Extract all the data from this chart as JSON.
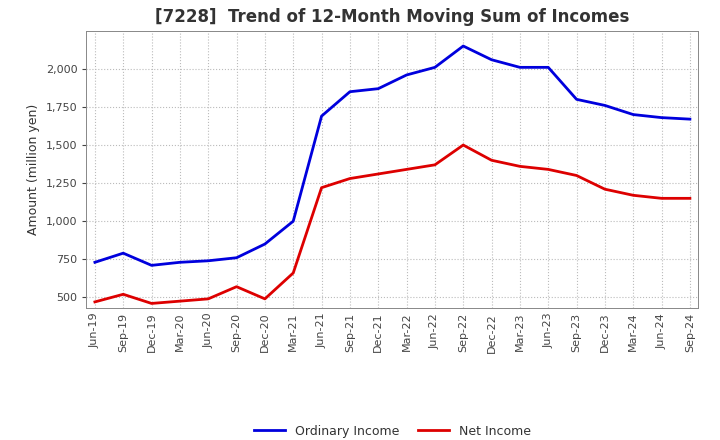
{
  "title": "[7228]  Trend of 12-Month Moving Sum of Incomes",
  "ylabel": "Amount (million yen)",
  "x_labels": [
    "Jun-19",
    "Sep-19",
    "Dec-19",
    "Mar-20",
    "Jun-20",
    "Sep-20",
    "Dec-20",
    "Mar-21",
    "Jun-21",
    "Sep-21",
    "Dec-21",
    "Mar-22",
    "Jun-22",
    "Sep-22",
    "Dec-22",
    "Mar-23",
    "Jun-23",
    "Sep-23",
    "Dec-23",
    "Mar-24",
    "Jun-24",
    "Sep-24"
  ],
  "ordinary_income": [
    730,
    790,
    710,
    730,
    740,
    760,
    850,
    1000,
    1690,
    1850,
    1870,
    1960,
    2010,
    2150,
    2060,
    2010,
    2010,
    1800,
    1760,
    1700,
    1680,
    1670
  ],
  "net_income": [
    470,
    520,
    460,
    475,
    490,
    570,
    490,
    660,
    1220,
    1280,
    1310,
    1340,
    1370,
    1500,
    1400,
    1360,
    1340,
    1300,
    1210,
    1170,
    1150,
    1150
  ],
  "ordinary_color": "#0000dd",
  "net_color": "#dd0000",
  "line_width": 2.0,
  "ylim": [
    430,
    2250
  ],
  "yticks": [
    500,
    750,
    1000,
    1250,
    1500,
    1750,
    2000
  ],
  "background_color": "#ffffff",
  "grid_color": "#bbbbbb",
  "title_fontsize": 12,
  "title_color": "#333333",
  "label_fontsize": 9,
  "tick_fontsize": 8,
  "legend_fontsize": 9
}
